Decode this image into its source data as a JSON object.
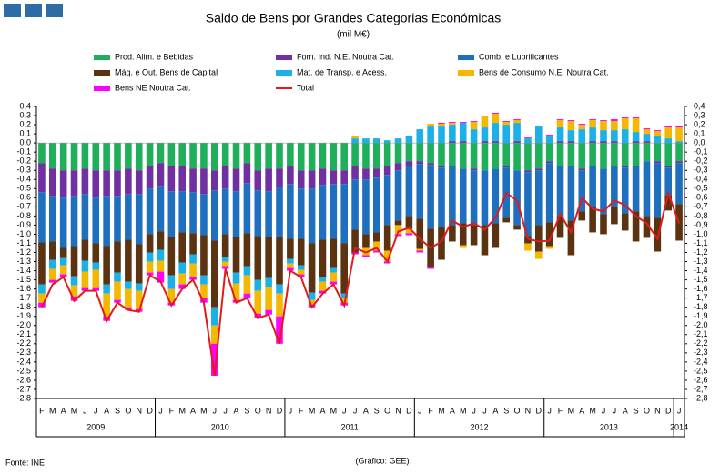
{
  "chart_data": {
    "type": "bar",
    "title": "Saldo de Bens por Grandes Categorias Económicas",
    "subtitle": "(mil M€)",
    "source": "Fonte: INE",
    "credit": "(Gráfico: GEE)",
    "categories": [
      "F",
      "M",
      "A",
      "M",
      "J",
      "J",
      "A",
      "S",
      "O",
      "N",
      "D",
      "J",
      "F",
      "M",
      "A",
      "M",
      "J",
      "J",
      "A",
      "S",
      "O",
      "N",
      "D",
      "J",
      "F",
      "M",
      "A",
      "M",
      "J",
      "J",
      "A",
      "S",
      "O",
      "N",
      "D",
      "J",
      "F",
      "M",
      "A",
      "M",
      "J",
      "J",
      "A",
      "S",
      "O",
      "N",
      "D",
      "J",
      "F",
      "M",
      "A",
      "M",
      "J",
      "J",
      "A",
      "S",
      "O",
      "N",
      "D",
      "J"
    ],
    "years": [
      "2009",
      "2010",
      "2011",
      "2012",
      "2013",
      "2014"
    ],
    "stacked": true,
    "ylim": [
      -2.8,
      0.4
    ],
    "yticks": [
      {
        "value": 0.4,
        "label": "0,4"
      },
      {
        "value": 0.3,
        "label": "0,3"
      },
      {
        "value": 0.2,
        "label": "0,2"
      },
      {
        "value": 0.1,
        "label": "0,1"
      },
      {
        "value": 0,
        "label": "0,0"
      },
      {
        "value": -0.1,
        "label": "-0,1"
      },
      {
        "value": -0.2,
        "label": "-0,2"
      },
      {
        "value": -0.3,
        "label": "-0,3"
      },
      {
        "value": -0.4,
        "label": "-0,4"
      },
      {
        "value": -0.5,
        "label": "-0,5"
      },
      {
        "value": -0.6,
        "label": "-0,6"
      },
      {
        "value": -0.7,
        "label": "-0,7"
      },
      {
        "value": -0.8,
        "label": "-0,8"
      },
      {
        "value": -0.9,
        "label": "-0,9"
      },
      {
        "value": -1.0,
        "label": "-1,0"
      },
      {
        "value": -1.1,
        "label": "-1,1"
      },
      {
        "value": -1.2,
        "label": "-1,2"
      },
      {
        "value": -1.3,
        "label": "-1,3"
      },
      {
        "value": -1.4,
        "label": "-1,4"
      },
      {
        "value": -1.5,
        "label": "-1,5"
      },
      {
        "value": -1.6,
        "label": "-1,6"
      },
      {
        "value": -1.7,
        "label": "-1,7"
      },
      {
        "value": -1.8,
        "label": "-1,8"
      },
      {
        "value": -1.9,
        "label": "-1,9"
      },
      {
        "value": -2.0,
        "label": "-2,0"
      },
      {
        "value": -2.1,
        "label": "-2,1"
      },
      {
        "value": -2.2,
        "label": "-2,2"
      },
      {
        "value": -2.3,
        "label": "-2,3"
      },
      {
        "value": -2.4,
        "label": "-2,4"
      },
      {
        "value": -2.5,
        "label": "-2,5"
      },
      {
        "value": -2.6,
        "label": "-2,6"
      },
      {
        "value": -2.7,
        "label": "-2,7"
      },
      {
        "value": -2.8,
        "label": "-2,8"
      }
    ],
    "series": [
      {
        "name": "Prod. Alim. e Bebidas",
        "color": "#1fae5a",
        "values": [
          -0.22,
          -0.28,
          -0.3,
          -0.3,
          -0.28,
          -0.3,
          -0.3,
          -0.3,
          -0.28,
          -0.3,
          -0.25,
          -0.22,
          -0.25,
          -0.25,
          -0.28,
          -0.28,
          -0.3,
          -0.25,
          -0.28,
          -0.22,
          -0.3,
          -0.28,
          -0.28,
          -0.25,
          -0.3,
          -0.3,
          -0.28,
          -0.3,
          -0.3,
          -0.25,
          -0.28,
          -0.28,
          -0.25,
          -0.22,
          -0.2,
          -0.2,
          -0.22,
          -0.25,
          -0.25,
          -0.28,
          -0.28,
          -0.3,
          -0.28,
          -0.25,
          -0.3,
          -0.3,
          -0.28,
          -0.2,
          -0.25,
          -0.25,
          -0.28,
          -0.25,
          -0.28,
          -0.25,
          -0.25,
          -0.25,
          -0.2,
          -0.2,
          -0.25,
          -0.2
        ]
      },
      {
        "name": "Forn. Ind. N.E. Noutra Cat.",
        "color": "#7030a0",
        "values": [
          -0.32,
          -0.3,
          -0.3,
          -0.28,
          -0.28,
          -0.3,
          -0.28,
          -0.28,
          -0.28,
          -0.26,
          -0.25,
          -0.25,
          -0.28,
          -0.28,
          -0.26,
          -0.28,
          -0.22,
          -0.25,
          -0.25,
          -0.22,
          -0.22,
          -0.25,
          -0.2,
          -0.2,
          -0.2,
          -0.2,
          -0.18,
          -0.15,
          -0.15,
          -0.15,
          -0.12,
          -0.1,
          -0.1,
          -0.08,
          -0.05,
          -0.03,
          -0.02,
          -0.02,
          0.02,
          0.02,
          -0.02,
          0.02,
          0.02,
          -0.02,
          0.02,
          -0.02,
          -0.02,
          -0.02,
          0.02,
          0.02,
          -0.02,
          0.02,
          0.02,
          0.02,
          -0.02,
          0.02,
          0.02,
          -0.02,
          -0.02,
          -0.02
        ]
      },
      {
        "name": "Comb. e Lubrificantes",
        "color": "#1f6fbf",
        "values": [
          -0.55,
          -0.5,
          -0.55,
          -0.55,
          -0.5,
          -0.5,
          -0.55,
          -0.5,
          -0.5,
          -0.55,
          -0.5,
          -0.5,
          -0.5,
          -0.45,
          -0.45,
          -0.45,
          -0.55,
          -0.5,
          -0.5,
          -0.55,
          -0.5,
          -0.5,
          -0.55,
          -0.6,
          -0.55,
          -0.6,
          -0.6,
          -0.6,
          -0.65,
          -0.55,
          -0.6,
          -0.6,
          -0.55,
          -0.55,
          -0.55,
          -0.6,
          -0.7,
          -0.65,
          -0.65,
          -0.6,
          -0.6,
          -0.6,
          -0.6,
          -0.55,
          -0.6,
          -0.7,
          -0.6,
          -0.65,
          -0.55,
          -0.6,
          -0.45,
          -0.45,
          -0.5,
          -0.45,
          -0.5,
          -0.5,
          -0.6,
          -0.6,
          -0.3,
          -0.45
        ]
      },
      {
        "name": "Máq. e Out. Bens de Capital",
        "color": "#5c3310",
        "values": [
          -0.46,
          -0.2,
          -0.11,
          -0.33,
          -0.23,
          -0.21,
          -0.42,
          -0.34,
          -0.46,
          -0.43,
          -0.2,
          -0.2,
          -0.42,
          -0.33,
          -0.23,
          -0.44,
          -0.73,
          -0.25,
          -0.39,
          -0.36,
          -0.48,
          -0.45,
          -0.52,
          -0.22,
          -0.29,
          -0.54,
          -0.41,
          -0.32,
          -0.55,
          -0.25,
          -0.15,
          -0.1,
          -0.28,
          -0.05,
          -0.14,
          -0.33,
          -0.42,
          -0.36,
          -0.18,
          -0.24,
          -0.22,
          -0.33,
          -0.27,
          -0.05,
          -0.05,
          -0.08,
          -0.29,
          -0.26,
          -0.24,
          -0.38,
          -0.1,
          -0.28,
          -0.22,
          -0.19,
          -0.19,
          -0.33,
          -0.24,
          -0.37,
          -0.17,
          -0.4
        ]
      },
      {
        "name": "Mat. de Transp. e Acess.",
        "color": "#1cb0e8",
        "values": [
          -0.1,
          -0.1,
          -0.08,
          -0.1,
          -0.12,
          -0.08,
          -0.1,
          -0.1,
          -0.08,
          -0.08,
          -0.1,
          -0.12,
          -0.15,
          -0.12,
          -0.1,
          -0.1,
          -0.2,
          -0.05,
          -0.12,
          -0.1,
          -0.12,
          -0.1,
          -0.1,
          -0.05,
          -0.05,
          -0.08,
          -0.05,
          -0.05,
          -0.05,
          0.05,
          0.05,
          0.05,
          0.03,
          0.05,
          0.08,
          0.15,
          0.18,
          0.18,
          0.18,
          0.2,
          0.15,
          0.15,
          0.2,
          0.2,
          0.2,
          0.05,
          0.18,
          0.08,
          0.15,
          0.12,
          0.15,
          0.15,
          0.12,
          0.12,
          0.15,
          0.1,
          0.08,
          0.08,
          0.05,
          0.02
        ]
      },
      {
        "name": "Bens de Consumo N.E. Noutra Cat.",
        "color": "#f5b800",
        "values": [
          -0.1,
          -0.12,
          -0.1,
          -0.12,
          -0.18,
          -0.2,
          -0.25,
          -0.2,
          -0.2,
          -0.2,
          -0.12,
          -0.12,
          -0.15,
          -0.12,
          -0.15,
          -0.15,
          -0.2,
          -0.05,
          -0.18,
          -0.2,
          -0.25,
          -0.25,
          -0.25,
          -0.05,
          -0.05,
          -0.05,
          -0.1,
          -0.1,
          -0.05,
          0.03,
          -0.08,
          -0.1,
          -0.12,
          -0.1,
          -0.05,
          -0.02,
          0.03,
          0.03,
          0.02,
          -0.03,
          0.08,
          0.12,
          0.1,
          0.03,
          0.03,
          -0.08,
          -0.08,
          -0.03,
          0.08,
          0.1,
          0.05,
          0.08,
          0.1,
          0.1,
          0.12,
          0.15,
          0.05,
          0.05,
          0.12,
          0.15
        ]
      },
      {
        "name": "Bens NE Noutra Cat.",
        "color": "#ff00ff",
        "values": [
          -0.05,
          -0.03,
          -0.03,
          -0.05,
          -0.03,
          -0.03,
          -0.05,
          -0.03,
          -0.03,
          -0.03,
          -0.03,
          -0.12,
          -0.03,
          -0.05,
          -0.03,
          -0.05,
          -0.35,
          -0.03,
          -0.03,
          -0.05,
          -0.05,
          -0.05,
          -0.3,
          -0.03,
          -0.03,
          -0.03,
          -0.03,
          -0.03,
          -0.03,
          -0.02,
          -0.02,
          -0.02,
          -0.02,
          -0.02,
          -0.02,
          -0.02,
          -0.02,
          0.01,
          0.01,
          0.01,
          0.01,
          0.01,
          0.01,
          0.01,
          0.01,
          0.01,
          0.01,
          0.01,
          0.01,
          0.01,
          0.01,
          0.01,
          0.01,
          0.02,
          0.01,
          0.01,
          0.01,
          0.01,
          0.02,
          0.02
        ]
      }
    ],
    "total": {
      "name": "Total",
      "color": "#e31a1c",
      "values": [
        -1.8,
        -1.55,
        -1.47,
        -1.73,
        -1.62,
        -1.62,
        -1.95,
        -1.75,
        -1.83,
        -1.85,
        -1.45,
        -1.52,
        -1.78,
        -1.6,
        -1.5,
        -1.75,
        -2.55,
        -1.38,
        -1.75,
        -1.7,
        -1.92,
        -1.88,
        -2.2,
        -1.4,
        -1.47,
        -1.8,
        -1.65,
        -1.55,
        -1.78,
        -1.15,
        -1.2,
        -1.15,
        -1.3,
        -0.97,
        -0.93,
        -1.05,
        -1.15,
        -1.08,
        -0.85,
        -0.92,
        -0.88,
        -0.95,
        -0.82,
        -0.55,
        -0.63,
        -1.05,
        -1.08,
        -1.07,
        -0.78,
        -0.98,
        -0.6,
        -0.72,
        -0.75,
        -0.63,
        -0.68,
        -0.8,
        -0.88,
        -1.05,
        -0.55,
        -0.88
      ]
    }
  }
}
